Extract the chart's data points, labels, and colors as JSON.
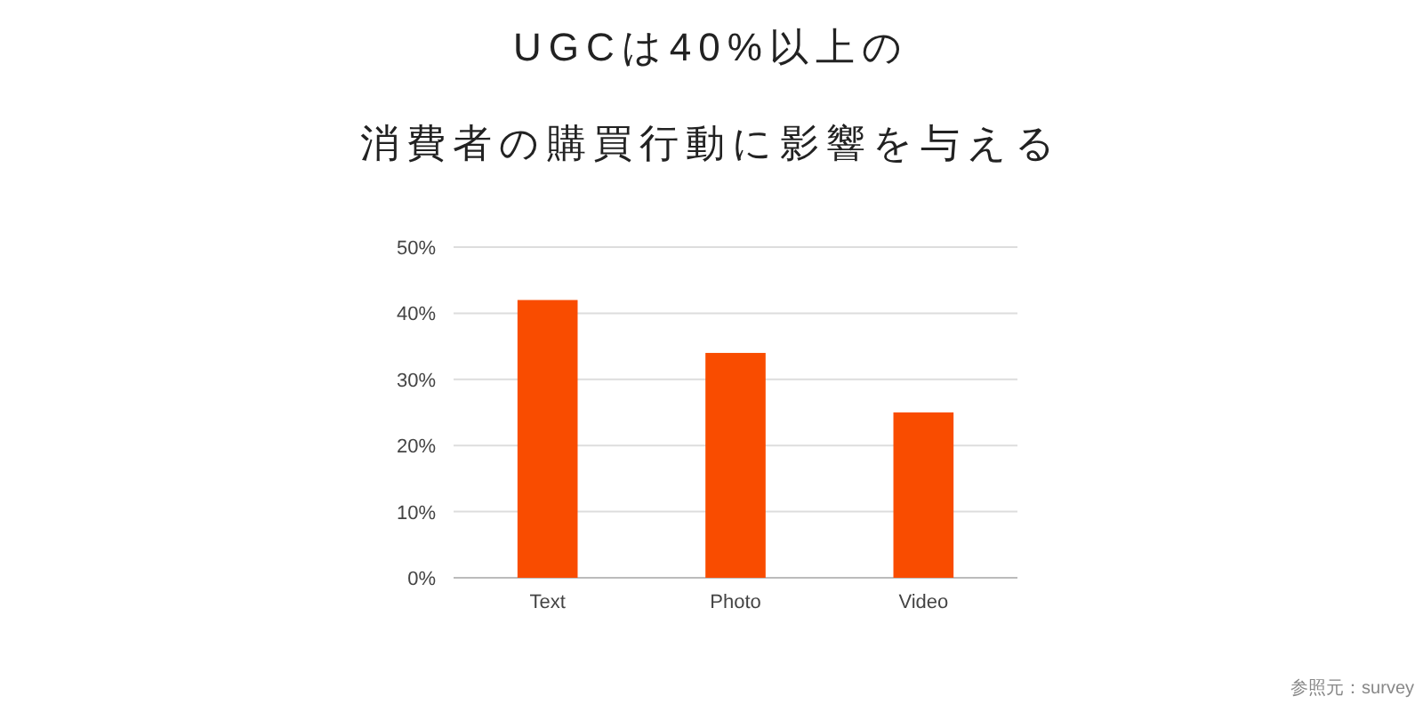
{
  "chart_data": {
    "type": "bar",
    "title": "UGCは40%以上の",
    "subtitle": "消費者の購買行動に影響を与える",
    "categories": [
      "Text",
      "Photo",
      "Video"
    ],
    "values": [
      42,
      34,
      25
    ],
    "color": "#f94c00",
    "ylim": [
      0,
      50
    ],
    "yticks": [
      {
        "value": 0,
        "label": "0%"
      },
      {
        "value": 10,
        "label": "10%"
      },
      {
        "value": 20,
        "label": "20%"
      },
      {
        "value": 30,
        "label": "30%"
      },
      {
        "value": 40,
        "label": "40%"
      },
      {
        "value": 50,
        "label": "50%"
      }
    ],
    "grid": "y",
    "annotations": [
      "参照元：survey"
    ]
  }
}
